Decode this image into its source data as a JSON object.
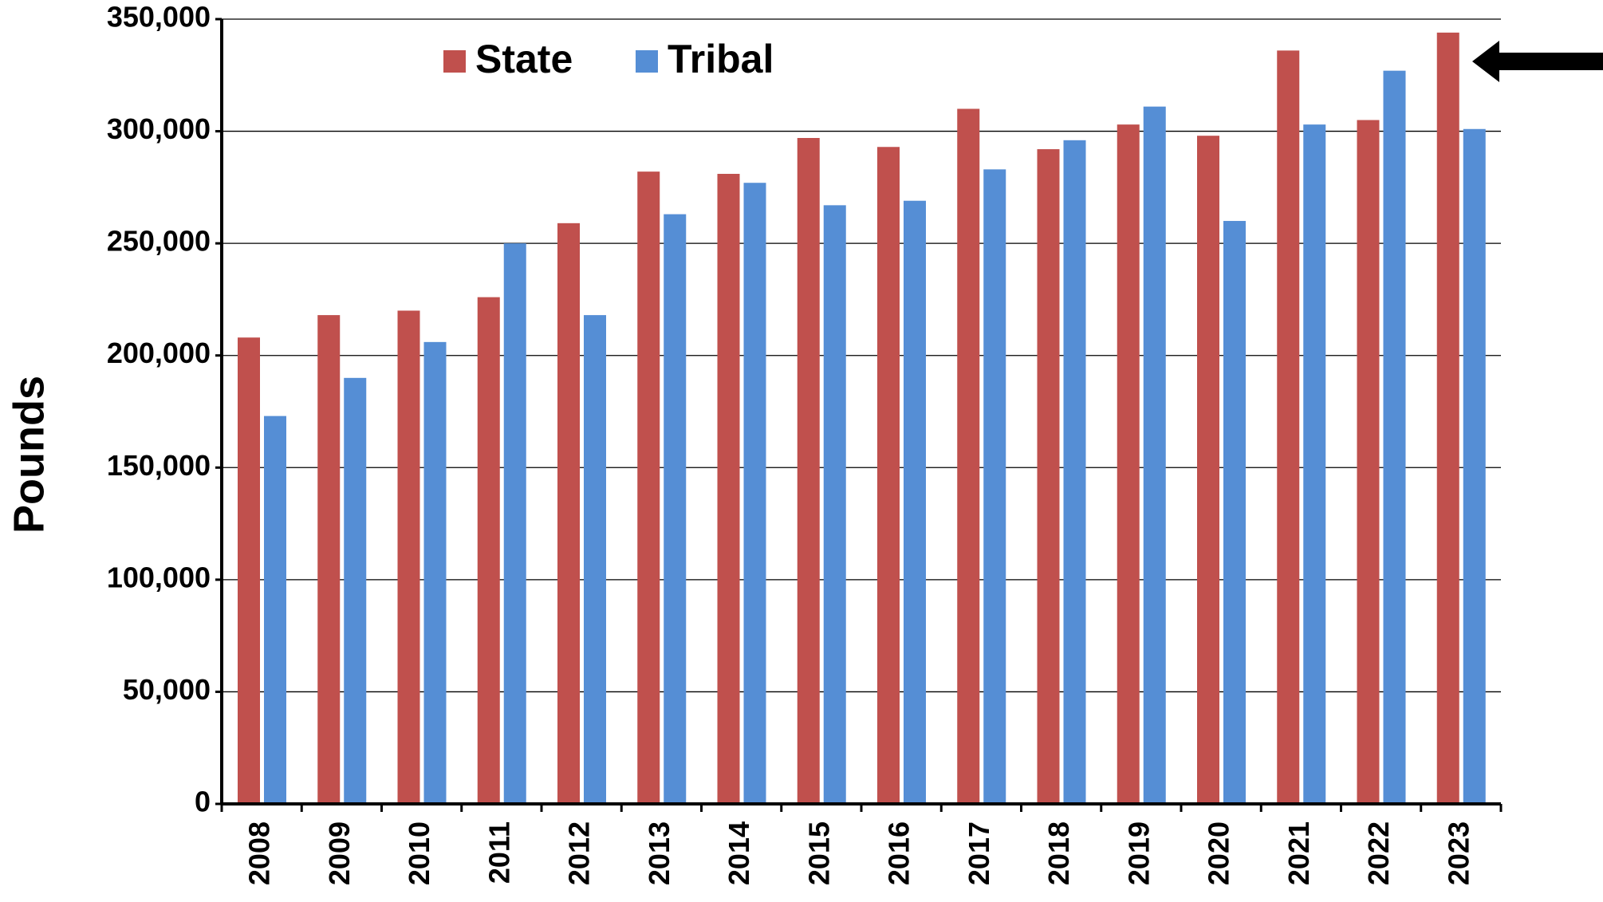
{
  "chart_data": {
    "type": "bar",
    "y_label": "Pounds",
    "categories": [
      "2008",
      "2009",
      "2010",
      "2011",
      "2012",
      "2013",
      "2014",
      "2015",
      "2016",
      "2017",
      "2018",
      "2019",
      "2020",
      "2021",
      "2022",
      "2023"
    ],
    "series": [
      {
        "name": "State",
        "color": "#c0504d",
        "values": [
          208000,
          218000,
          220000,
          226000,
          259000,
          282000,
          281000,
          297000,
          293000,
          310000,
          292000,
          303000,
          298000,
          336000,
          305000,
          344000
        ]
      },
      {
        "name": "Tribal",
        "color": "#558ed5",
        "values": [
          173000,
          190000,
          206000,
          250000,
          218000,
          263000,
          277000,
          267000,
          269000,
          283000,
          296000,
          311000,
          260000,
          303000,
          327000,
          301000
        ]
      }
    ],
    "ylim": [
      0,
      350000
    ],
    "yticks": [
      0,
      {
        "value": 50000,
        "label": "50,000"
      },
      {
        "value": 100000,
        "label": "100,000"
      },
      {
        "value": 150000,
        "label": "150,000"
      },
      {
        "value": 200000,
        "label": "200,000"
      },
      {
        "value": 250000,
        "label": "250,000"
      },
      {
        "value": 300000,
        "label": "300,000"
      },
      {
        "value": 350000,
        "label": "350,000"
      }
    ],
    "grid": true,
    "legend": "upper-left"
  }
}
